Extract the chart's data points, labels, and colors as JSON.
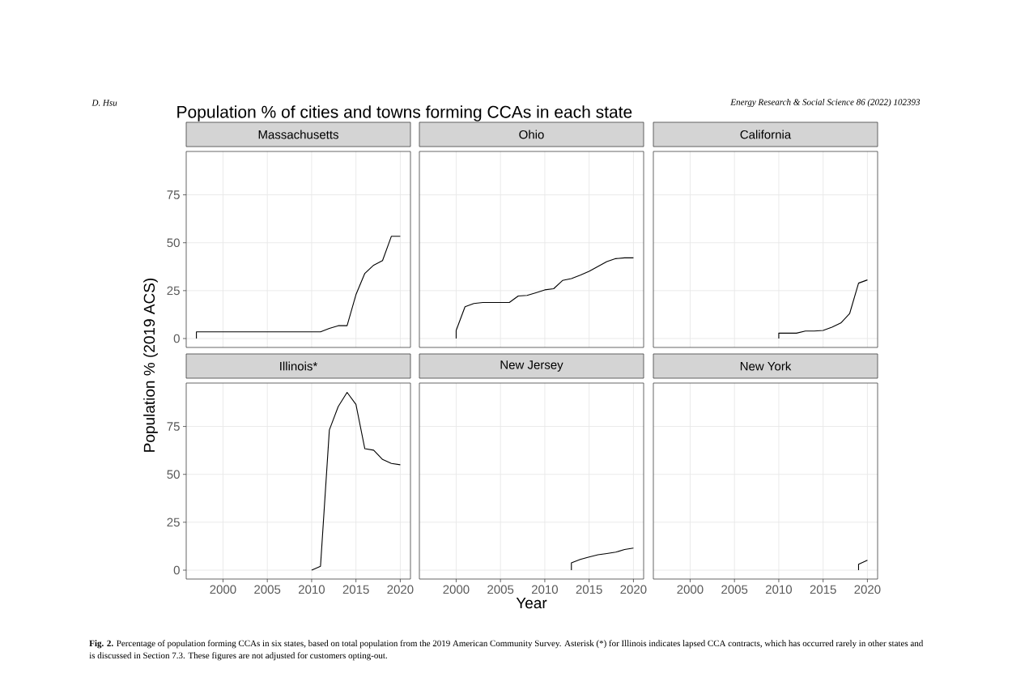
{
  "chart_data": [
    {
      "type": "line",
      "title": "Massachusetts",
      "ylabel": "Population % (2019 ACS)",
      "color": "#000000",
      "grid": true,
      "tick_labels": "y",
      "x": [
        1997,
        1997,
        2011,
        2012,
        2013,
        2014,
        2015,
        2016,
        2017,
        2018,
        2019,
        2020
      ],
      "values": [
        0,
        3.5,
        3.5,
        5.3,
        6.7,
        6.7,
        22.9,
        34,
        38.3,
        40.7,
        53.4,
        53.4
      ],
      "xlim": [
        1995.85,
        2021.15
      ],
      "ylim": [
        -4.65,
        97.65
      ],
      "xticks": [
        2000,
        2005,
        2010,
        2015,
        2020
      ],
      "yticks": [
        0,
        25,
        50,
        75
      ],
      "annotations": [
        "D. Hsu",
        "Energy Research & Social Science 86 (2022) 102393",
        "Population % of cities and towns forming CCAs in each state",
        "**Fig. 2.** Percentage of population forming CCAs in six states, based on total population from the 2019 American Community Survey. Asterisk (*) for Illinois indicates lapsed CCA contracts, which has occurred rarely in other states and is discussed in Section 7.3. These figures are not adjusted for customers opting-out."
      ]
    },
    {
      "type": "line",
      "title": "Ohio",
      "color": "#000000",
      "grid": true,
      "tick_labels": false,
      "x": [
        2000,
        2000,
        2001,
        2002,
        2003,
        2006,
        2007,
        2008,
        2009,
        2010,
        2011,
        2012,
        2013,
        2014,
        2015,
        2016,
        2017,
        2018,
        2019,
        2020
      ],
      "values": [
        0,
        4.2,
        16.6,
        18.3,
        18.8,
        18.8,
        22.2,
        22.5,
        23.9,
        25.4,
        26,
        30.3,
        31.3,
        33.1,
        35.1,
        37.6,
        40.2,
        41.7,
        42.1,
        42.1
      ],
      "xlim": [
        1995.85,
        2021.15
      ],
      "ylim": [
        -4.65,
        97.65
      ],
      "xticks": [
        2000,
        2005,
        2010,
        2015,
        2020
      ],
      "yticks": [
        0,
        25,
        50,
        75
      ]
    },
    {
      "type": "line",
      "title": "California",
      "color": "#000000",
      "grid": true,
      "tick_labels": false,
      "x": [
        2010,
        2010,
        2011,
        2012,
        2013,
        2014,
        2015,
        2016,
        2017,
        2018,
        2019,
        2020
      ],
      "values": [
        0,
        2.8,
        2.8,
        2.8,
        3.9,
        3.9,
        4.2,
        5.9,
        8.1,
        13.1,
        28.9,
        30.6
      ],
      "xlim": [
        1995.85,
        2021.15
      ],
      "ylim": [
        -4.65,
        97.65
      ],
      "xticks": [
        2000,
        2005,
        2010,
        2015,
        2020
      ],
      "yticks": [
        0,
        25,
        50,
        75
      ]
    },
    {
      "type": "line",
      "title": "Illinois*",
      "color": "#000000",
      "grid": true,
      "x": [
        2010,
        2011,
        2012,
        2013,
        2014,
        2015,
        2016,
        2017,
        2018,
        2019,
        2020
      ],
      "values": [
        0,
        2,
        73.2,
        85.4,
        92.8,
        86.5,
        63.4,
        62.6,
        57.8,
        55.7,
        55
      ],
      "xlim": [
        1995.85,
        2021.15
      ],
      "ylim": [
        -4.65,
        97.65
      ],
      "xticks": [
        2000,
        2005,
        2010,
        2015,
        2020
      ],
      "yticks": [
        0,
        25,
        50,
        75
      ]
    },
    {
      "type": "line",
      "title": "New Jersey",
      "xlabel": "Year",
      "color": "#000000",
      "grid": true,
      "tick_labels": "x",
      "x": [
        2013,
        2013,
        2014,
        2015,
        2016,
        2017,
        2018,
        2019,
        2020
      ],
      "values": [
        0,
        3.8,
        5.6,
        6.9,
        8,
        8.7,
        9.4,
        10.8,
        11.5
      ],
      "xlim": [
        1995.85,
        2021.15
      ],
      "ylim": [
        -4.65,
        97.65
      ],
      "xticks": [
        2000,
        2005,
        2010,
        2015,
        2020
      ],
      "yticks": [
        0,
        25,
        50,
        75
      ]
    },
    {
      "type": "line",
      "title": "New York",
      "color": "#000000",
      "grid": true,
      "tick_labels": "x",
      "x": [
        2019,
        2019,
        2020
      ],
      "values": [
        0,
        3.1,
        5.2
      ],
      "xlim": [
        1995.85,
        2021.15
      ],
      "ylim": [
        -4.65,
        97.65
      ],
      "xticks": [
        2000,
        2005,
        2010,
        2015,
        2020
      ],
      "yticks": [
        0,
        25,
        50,
        75
      ]
    }
  ]
}
